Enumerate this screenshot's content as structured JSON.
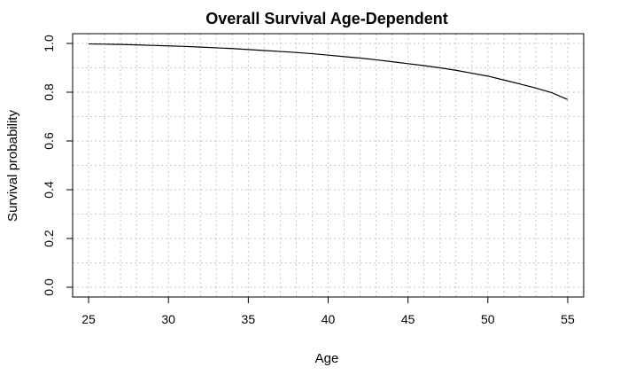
{
  "chart_data": {
    "type": "line",
    "title": "Overall Survival Age-Dependent",
    "xlabel": "Age",
    "ylabel": "Survival probability",
    "xlim": [
      24,
      56
    ],
    "ylim": [
      -0.04,
      1.04
    ],
    "x_ticks": [
      25,
      30,
      35,
      40,
      45,
      50,
      55
    ],
    "y_ticks": [
      0.0,
      0.2,
      0.4,
      0.6,
      0.8,
      1.0
    ],
    "x_tick_labels": [
      "25",
      "30",
      "35",
      "40",
      "45",
      "50",
      "55"
    ],
    "y_tick_labels": [
      "0.0",
      "0.2",
      "0.4",
      "0.6",
      "0.8",
      "1.0"
    ],
    "x_grid": [
      25,
      26,
      27,
      28,
      29,
      30,
      31,
      32,
      33,
      34,
      35,
      36,
      37,
      38,
      39,
      40,
      41,
      42,
      43,
      44,
      45,
      46,
      47,
      48,
      49,
      50,
      51,
      52,
      53,
      54,
      55
    ],
    "y_grid": [
      0.0,
      0.1,
      0.2,
      0.3,
      0.4,
      0.5,
      0.6,
      0.7,
      0.8,
      0.9,
      1.0
    ],
    "grid": true,
    "line_color": "#000000",
    "x": [
      25,
      26,
      27,
      28,
      29,
      30,
      31,
      32,
      33,
      34,
      35,
      36,
      37,
      38,
      39,
      40,
      41,
      42,
      43,
      44,
      45,
      46,
      47,
      48,
      49,
      50,
      51,
      52,
      53,
      54,
      55
    ],
    "y": [
      0.998,
      0.997,
      0.996,
      0.994,
      0.992,
      0.99,
      0.988,
      0.985,
      0.982,
      0.979,
      0.975,
      0.971,
      0.967,
      0.963,
      0.958,
      0.952,
      0.946,
      0.94,
      0.933,
      0.925,
      0.917,
      0.909,
      0.9,
      0.89,
      0.878,
      0.866,
      0.85,
      0.834,
      0.817,
      0.798,
      0.77
    ]
  }
}
